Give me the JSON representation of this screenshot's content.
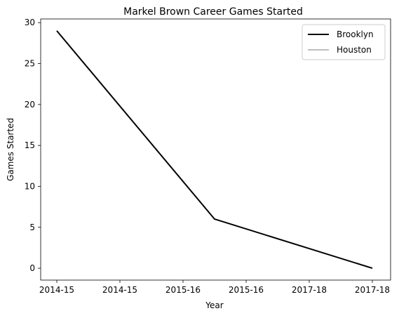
{
  "chart_data": {
    "type": "line",
    "title": "Markel Brown Career Games Started",
    "xlabel": "Year",
    "ylabel": "Games Started",
    "x_tick_labels": [
      "2014-15",
      "2014-15",
      "2015-16",
      "2015-16",
      "2017-18",
      "2017-18"
    ],
    "ylim": [
      -1.45,
      30.45
    ],
    "y_ticks": [
      0,
      5,
      10,
      15,
      20,
      25,
      30
    ],
    "grid": false,
    "legend_position": "top-right",
    "series": [
      {
        "name": "Brooklyn",
        "color": "#000000",
        "points": [
          {
            "x": 0,
            "y": 29
          },
          {
            "x": 2.5,
            "y": 6
          },
          {
            "x": 5,
            "y": 0
          }
        ]
      },
      {
        "name": "Houston",
        "color": "#bfbfbf",
        "points": []
      }
    ]
  }
}
